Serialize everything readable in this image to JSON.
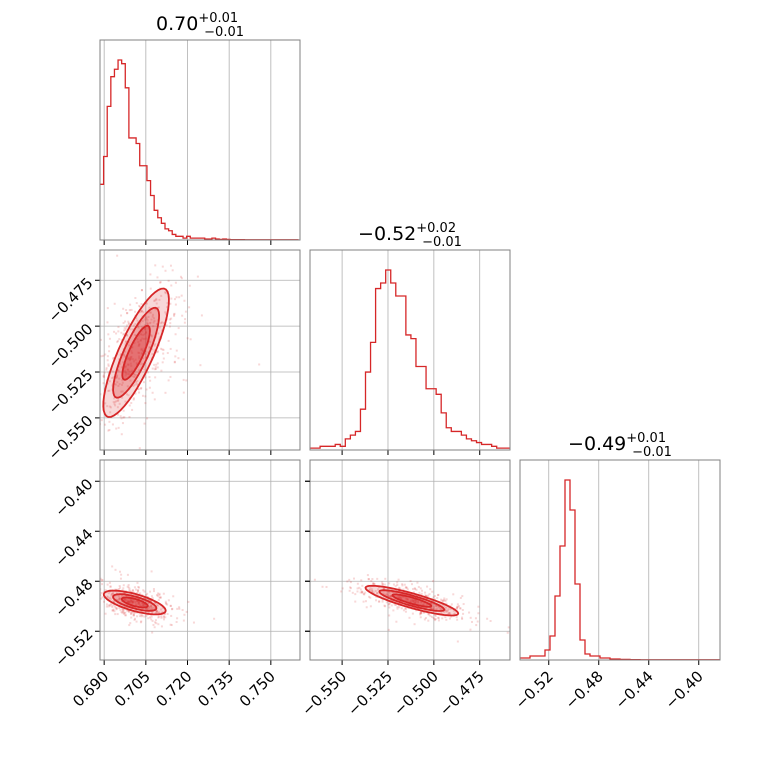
{
  "chart_data": {
    "type": "corner",
    "colors": {
      "main": "#d62728",
      "grid": "#b0b0b0",
      "frame": "#808080"
    },
    "grid": true,
    "parameters": [
      {
        "median": "0.70",
        "err_plus": "+0.01",
        "err_minus": "−0.01",
        "range": [
          0.6885,
          0.7605
        ],
        "ticks": [
          0.69,
          0.705,
          0.72,
          0.735,
          0.75
        ],
        "tick_labels": [
          "0.690",
          "0.705",
          "0.720",
          "0.735",
          "0.750"
        ]
      },
      {
        "median": "−0.52",
        "err_plus": "+0.02",
        "err_minus": "−0.01",
        "range": [
          -0.5675,
          -0.4585
        ],
        "ticks": [
          -0.55,
          -0.525,
          -0.5,
          -0.475
        ],
        "tick_labels": [
          "−0.550",
          "−0.525",
          "−0.500",
          "−0.475"
        ]
      },
      {
        "median": "−0.49",
        "err_plus": "+0.01",
        "err_minus": "−0.01",
        "range": [
          -0.543,
          -0.383
        ],
        "ticks": [
          -0.52,
          -0.48,
          -0.44,
          -0.4
        ],
        "tick_labels": [
          "−0.52",
          "−0.48",
          "−0.44",
          "−0.40"
        ]
      }
    ],
    "histograms": [
      {
        "param": 0,
        "bin_start": 0.6885,
        "bin_width": 0.0013,
        "counts": [
          0.3,
          0.45,
          0.72,
          0.88,
          0.92,
          0.97,
          0.95,
          0.82,
          0.55,
          0.55,
          0.52,
          0.4,
          0.4,
          0.32,
          0.24,
          0.16,
          0.12,
          0.09,
          0.06,
          0.05,
          0.03,
          0.02,
          0.02,
          0.01,
          0.02,
          0.01,
          0.01,
          0.01,
          0.01,
          0.005,
          0.005,
          0.01,
          0.005,
          0.003,
          0.005,
          0.003,
          0.002,
          0.002,
          0.002,
          0.002,
          0.001,
          0.001,
          0.001,
          0.001,
          0.001,
          0.001,
          0.001,
          0.001,
          0.001,
          0.001,
          0.001,
          0.001,
          0.001,
          0.001,
          0.001
        ]
      },
      {
        "param": 1,
        "bin_start": -0.5675,
        "bin_width": 0.00275,
        "counts": [
          0.01,
          0.01,
          0.02,
          0.02,
          0.02,
          0.03,
          0.02,
          0.06,
          0.08,
          0.1,
          0.22,
          0.42,
          0.58,
          0.87,
          0.9,
          0.97,
          0.9,
          0.83,
          0.83,
          0.62,
          0.6,
          0.45,
          0.45,
          0.33,
          0.33,
          0.3,
          0.2,
          0.12,
          0.1,
          0.1,
          0.08,
          0.06,
          0.05,
          0.04,
          0.03,
          0.03,
          0.02,
          0.01,
          0.01,
          0.01
        ]
      },
      {
        "param": 2,
        "bin_start": -0.543,
        "bin_width": 0.004,
        "counts": [
          0.01,
          0.01,
          0.02,
          0.02,
          0.02,
          0.05,
          0.12,
          0.32,
          0.57,
          0.9,
          0.75,
          0.38,
          0.1,
          0.03,
          0.02,
          0.02,
          0.01,
          0.01,
          0.005,
          0.005,
          0.003,
          0.003,
          0.002,
          0.002,
          0.001,
          0.001,
          0.001,
          0.001,
          0.001,
          0.001,
          0.001,
          0.001,
          0.001,
          0.001,
          0.001,
          0.001,
          0.001,
          0.001,
          0.001,
          0.001
        ]
      }
    ],
    "joint": [
      {
        "x_param": 0,
        "y_param": 1,
        "center": [
          0.7015,
          -0.5145
        ],
        "axis_dir": [
          0.01,
          0.035
        ],
        "major_sd": 1.0,
        "minor_sd": 0.2,
        "minor_scale": [
          0.007,
          -0.002
        ]
      },
      {
        "x_param": 0,
        "y_param": 2,
        "center": [
          0.701,
          -0.497
        ],
        "axis_dir": [
          0.011,
          -0.0075
        ],
        "major_sd": 1.0,
        "minor_sd": 0.22,
        "minor_scale": [
          0.002,
          0.0065
        ]
      },
      {
        "x_param": 1,
        "y_param": 2,
        "center": [
          -0.512,
          -0.4955
        ],
        "axis_dir": [
          0.025,
          -0.011
        ],
        "major_sd": 1.0,
        "minor_sd": 0.22,
        "minor_scale": [
          0.004,
          0.005
        ]
      }
    ]
  }
}
